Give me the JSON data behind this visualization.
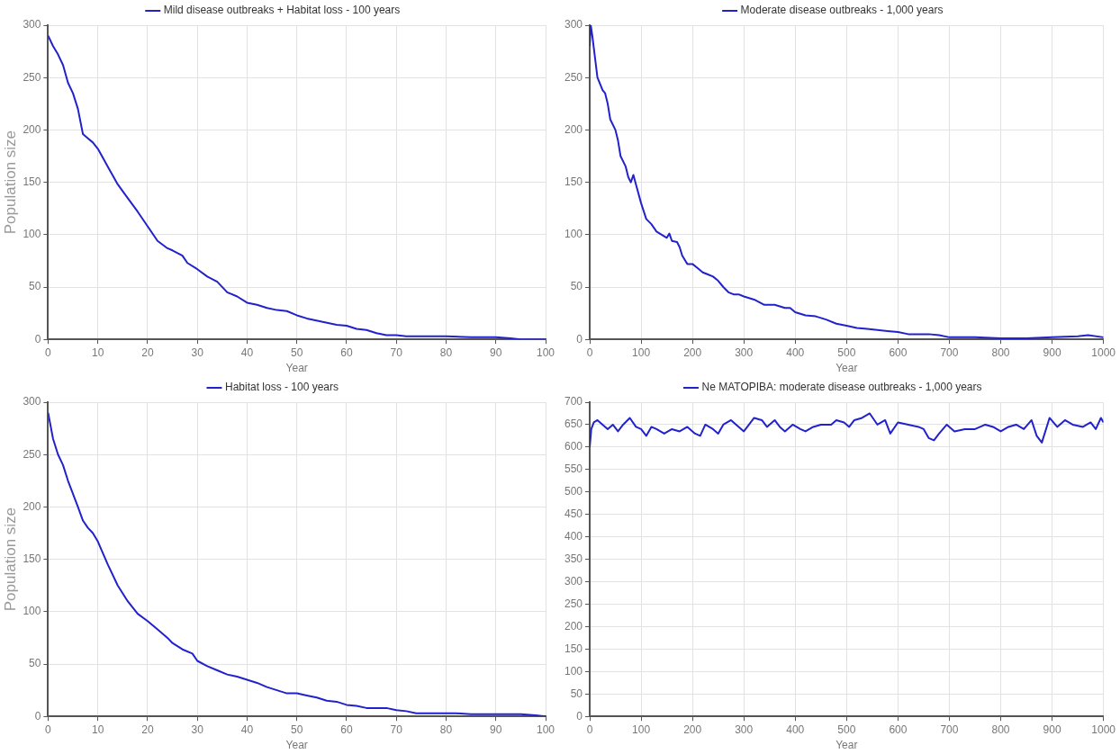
{
  "chart_data": [
    {
      "type": "line",
      "xlabel": "Year",
      "ylabel": "Population size",
      "xlim": [
        0,
        100
      ],
      "ylim": [
        0,
        300
      ],
      "xticks": [
        0,
        10,
        20,
        30,
        40,
        50,
        60,
        70,
        80,
        90,
        100
      ],
      "yticks": [
        0,
        50,
        100,
        150,
        200,
        250,
        300
      ],
      "grid": true,
      "legend": "top",
      "marker": "none",
      "line_style": "solid",
      "series": [
        {
          "name": "Mild disease outbreaks + Habitat loss - 100 years",
          "color": "#2222cc",
          "x": [
            0,
            1,
            2,
            3,
            4,
            5,
            6,
            7,
            8,
            9,
            10,
            12,
            14,
            16,
            18,
            20,
            22,
            24,
            25,
            27,
            28,
            30,
            32,
            34,
            36,
            38,
            40,
            42,
            44,
            46,
            48,
            50,
            52,
            55,
            58,
            60,
            62,
            64,
            66,
            68,
            70,
            72,
            75,
            80,
            85,
            90,
            93,
            95,
            100
          ],
          "values": [
            290,
            280,
            272,
            262,
            245,
            235,
            220,
            196,
            192,
            188,
            182,
            165,
            148,
            135,
            122,
            108,
            94,
            87,
            85,
            80,
            73,
            67,
            60,
            55,
            45,
            41,
            35,
            33,
            30,
            28,
            27,
            23,
            20,
            17,
            14,
            13,
            10,
            9,
            6,
            4,
            4,
            3,
            3,
            3,
            2,
            2,
            1,
            0,
            0
          ]
        }
      ]
    },
    {
      "type": "line",
      "xlabel": "Year",
      "xlim": [
        0,
        1000
      ],
      "ylim": [
        0,
        300
      ],
      "xticks": [
        0,
        100,
        200,
        300,
        400,
        500,
        600,
        700,
        800,
        900,
        1000
      ],
      "yticks": [
        0,
        50,
        100,
        150,
        200,
        250,
        300
      ],
      "grid": true,
      "legend": "top",
      "marker": "none",
      "line_style": "solid",
      "series": [
        {
          "name": "Moderate disease outbreaks - 1,000 years",
          "color": "#2222cc",
          "x": [
            0,
            2,
            5,
            10,
            15,
            25,
            30,
            35,
            40,
            50,
            55,
            60,
            70,
            75,
            80,
            85,
            90,
            100,
            110,
            120,
            130,
            140,
            150,
            155,
            160,
            170,
            175,
            180,
            190,
            200,
            210,
            220,
            230,
            240,
            250,
            260,
            270,
            280,
            290,
            300,
            320,
            340,
            360,
            380,
            390,
            400,
            420,
            440,
            460,
            480,
            500,
            520,
            540,
            560,
            580,
            600,
            620,
            640,
            660,
            680,
            700,
            750,
            800,
            850,
            900,
            950,
            970,
            1000
          ],
          "values": [
            280,
            300,
            290,
            270,
            250,
            238,
            235,
            225,
            210,
            200,
            190,
            175,
            165,
            155,
            150,
            157,
            148,
            130,
            115,
            110,
            103,
            100,
            97,
            101,
            94,
            93,
            88,
            80,
            72,
            72,
            68,
            64,
            62,
            60,
            56,
            50,
            45,
            43,
            43,
            41,
            38,
            33,
            33,
            30,
            30,
            26,
            23,
            22,
            19,
            15,
            13,
            11,
            10,
            9,
            8,
            7,
            5,
            5,
            5,
            4,
            2,
            2,
            1,
            1,
            2,
            3,
            4,
            2
          ]
        }
      ]
    },
    {
      "type": "line",
      "xlabel": "Year",
      "ylabel": "Population size",
      "xlim": [
        0,
        100
      ],
      "ylim": [
        0,
        300
      ],
      "xticks": [
        0,
        10,
        20,
        30,
        40,
        50,
        60,
        70,
        80,
        90,
        100
      ],
      "yticks": [
        0,
        50,
        100,
        150,
        200,
        250,
        300
      ],
      "grid": true,
      "legend": "top",
      "marker": "none",
      "line_style": "solid",
      "series": [
        {
          "name": "Habitat loss - 100 years",
          "color": "#2222cc",
          "x": [
            0,
            1,
            2,
            3,
            4,
            6,
            7,
            8,
            9,
            10,
            12,
            14,
            16,
            18,
            20,
            22,
            24,
            25,
            27,
            29,
            30,
            32,
            34,
            36,
            38,
            40,
            42,
            44,
            46,
            48,
            50,
            52,
            54,
            56,
            58,
            60,
            62,
            64,
            68,
            70,
            72,
            74,
            80,
            82,
            85,
            95,
            98,
            100
          ],
          "values": [
            290,
            265,
            250,
            240,
            225,
            200,
            187,
            180,
            175,
            167,
            145,
            125,
            110,
            98,
            91,
            83,
            75,
            70,
            64,
            60,
            53,
            48,
            44,
            40,
            38,
            35,
            32,
            28,
            25,
            22,
            22,
            20,
            18,
            15,
            14,
            11,
            10,
            8,
            8,
            6,
            5,
            3,
            3,
            3,
            2,
            2,
            1,
            0
          ]
        }
      ]
    },
    {
      "type": "line",
      "xlabel": "Year",
      "xlim": [
        0,
        1000
      ],
      "ylim": [
        0,
        700
      ],
      "xticks": [
        0,
        100,
        200,
        300,
        400,
        500,
        600,
        700,
        800,
        900,
        1000
      ],
      "yticks": [
        0,
        50,
        100,
        150,
        200,
        250,
        300,
        350,
        400,
        450,
        500,
        550,
        600,
        650,
        700
      ],
      "grid": true,
      "legend": "top",
      "marker": "none",
      "line_style": "solid",
      "series": [
        {
          "name": "Ne MATOPIBA: moderate disease outbreaks - 1,000 years",
          "color": "#2222cc",
          "x": [
            0,
            3,
            8,
            15,
            25,
            35,
            45,
            55,
            65,
            78,
            90,
            100,
            110,
            120,
            130,
            145,
            160,
            175,
            190,
            205,
            215,
            225,
            240,
            250,
            260,
            275,
            290,
            300,
            310,
            320,
            335,
            345,
            360,
            370,
            380,
            395,
            410,
            420,
            435,
            450,
            470,
            480,
            495,
            505,
            515,
            530,
            545,
            560,
            575,
            585,
            600,
            620,
            640,
            650,
            660,
            670,
            680,
            695,
            710,
            730,
            750,
            770,
            785,
            800,
            815,
            830,
            845,
            860,
            870,
            880,
            895,
            910,
            925,
            940,
            960,
            975,
            985,
            995,
            1000
          ],
          "values": [
            600,
            640,
            655,
            660,
            650,
            640,
            650,
            635,
            650,
            665,
            645,
            640,
            625,
            645,
            640,
            630,
            640,
            635,
            645,
            630,
            625,
            650,
            640,
            630,
            650,
            660,
            645,
            635,
            650,
            665,
            660,
            645,
            660,
            645,
            635,
            650,
            640,
            635,
            645,
            650,
            650,
            660,
            655,
            645,
            660,
            665,
            675,
            650,
            660,
            630,
            655,
            650,
            645,
            640,
            620,
            615,
            630,
            650,
            635,
            640,
            640,
            650,
            645,
            635,
            645,
            650,
            640,
            660,
            625,
            610,
            665,
            645,
            660,
            650,
            645,
            655,
            640,
            665,
            655
          ]
        }
      ]
    }
  ]
}
